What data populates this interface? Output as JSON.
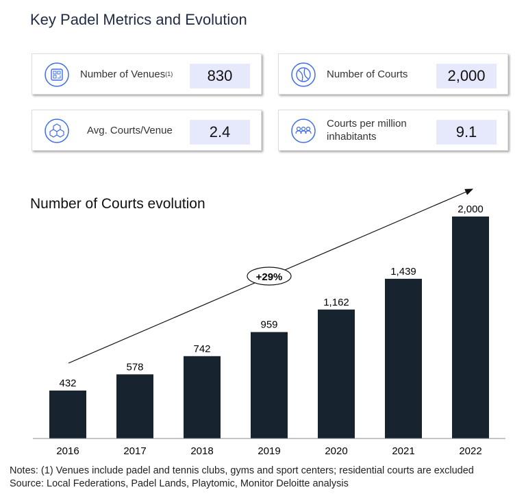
{
  "title": "Key Padel Metrics and Evolution",
  "metrics": [
    {
      "label": "Number of Venues",
      "sup": "(1)",
      "value": "830",
      "icon": "grid-building-icon"
    },
    {
      "label": "Number of Courts",
      "sup": "",
      "value": "2,000",
      "icon": "ball-icon"
    },
    {
      "label": "Avg. Courts/Venue",
      "sup": "",
      "value": "2.4",
      "icon": "cubes-icon"
    },
    {
      "label": "Courts per million inhabitants",
      "sup": "",
      "value": "9.1",
      "icon": "people-icon"
    }
  ],
  "colors": {
    "accent": "#3d6bf0",
    "bar": "#17232f",
    "value_box": "#e6e9fb"
  },
  "chart_data": {
    "type": "bar",
    "title": "Number of Courts evolution",
    "categories": [
      "2016",
      "2017",
      "2018",
      "2019",
      "2020",
      "2021",
      "2022"
    ],
    "values": [
      432,
      578,
      742,
      959,
      1162,
      1439,
      2000
    ],
    "labels": [
      "432",
      "578",
      "742",
      "959",
      "1,162",
      "1,439",
      "2,000"
    ],
    "annotation": "+29%",
    "trend_arrow": true,
    "grid": false
  },
  "notes": [
    "Notes: (1) Venues include padel and tennis clubs, gyms and sport centers; residential courts are excluded",
    "Source: Local Federations, Padel Lands, Playtomic, Monitor Deloitte analysis"
  ]
}
